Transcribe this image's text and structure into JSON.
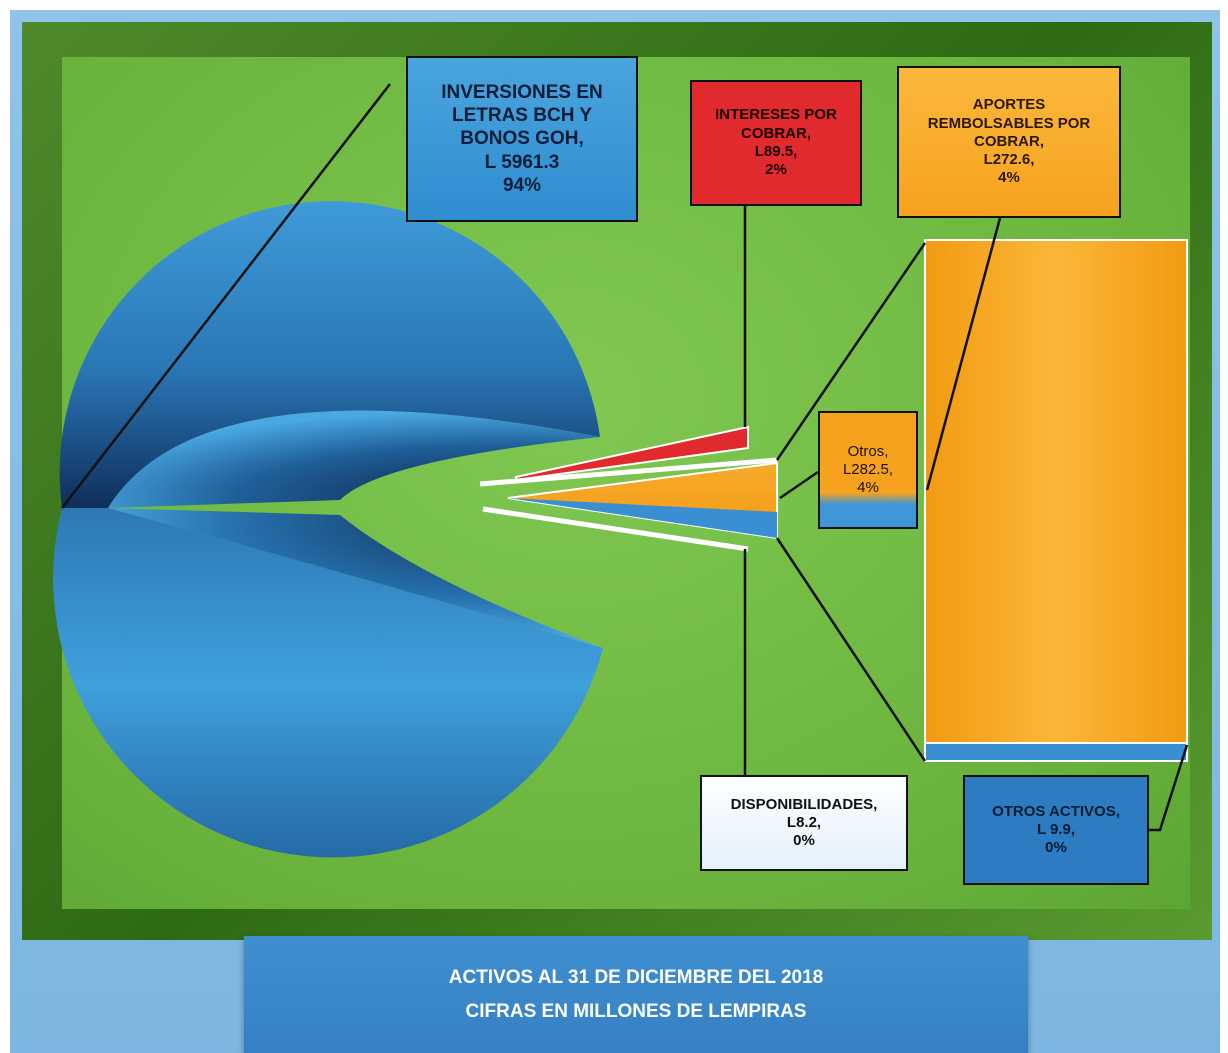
{
  "chart_data": {
    "type": "pie",
    "title": "ACTIVOS AL 31 DE DICIEMBRE DEL 2018",
    "subtitle": "CIFRAS EN MILLONES DE LEMPIRAS",
    "slices": [
      {
        "label_lines": [
          "INVERSIONES EN",
          "LETRAS BCH  Y",
          "BONOS GOH,",
          "L 5961.3",
          "94%"
        ],
        "name": "INVERSIONES EN LETRAS BCH Y BONOS GOH",
        "value": 5961.3,
        "percent": 94,
        "color": "#3a98d6"
      },
      {
        "label_lines": [
          "INTERESES POR",
          "COBRAR,",
          "L89.5,",
          "2%"
        ],
        "name": "INTERESES POR COBRAR",
        "value": 89.5,
        "percent": 2,
        "color": "#e12a2e"
      },
      {
        "label_lines": [
          "DISPONIBILIDADES,",
          "L8.2,",
          "0%"
        ],
        "name": "DISPONIBILIDADES",
        "value": 8.2,
        "percent": 0,
        "color": "#ffffff"
      },
      {
        "label_lines": [
          "Otros,",
          "L282.5,",
          "4%"
        ],
        "name": "Otros",
        "value": 282.5,
        "percent": 4,
        "color": "#f6a21e"
      }
    ],
    "breakdown": {
      "of": "Otros",
      "type": "bar-of-pie",
      "items": [
        {
          "label_lines": [
            "APORTES",
            "REMBOLSABLES POR",
            "COBRAR,",
            "L272.6,",
            "4%"
          ],
          "name": "APORTES REMBOLSABLES POR COBRAR",
          "value": 272.6,
          "percent": 4,
          "color": "#f6a21e"
        },
        {
          "label_lines": [
            "OTROS ACTIVOS,",
            "L 9.9,",
            "0%"
          ],
          "name": "OTROS ACTIVOS",
          "value": 9.9,
          "percent": 0,
          "color": "#3a8fd2"
        }
      ]
    }
  },
  "colors": {
    "background": "#7db6e0",
    "plot_area": "#6ab43e",
    "title_bar": "#3a87c9"
  }
}
